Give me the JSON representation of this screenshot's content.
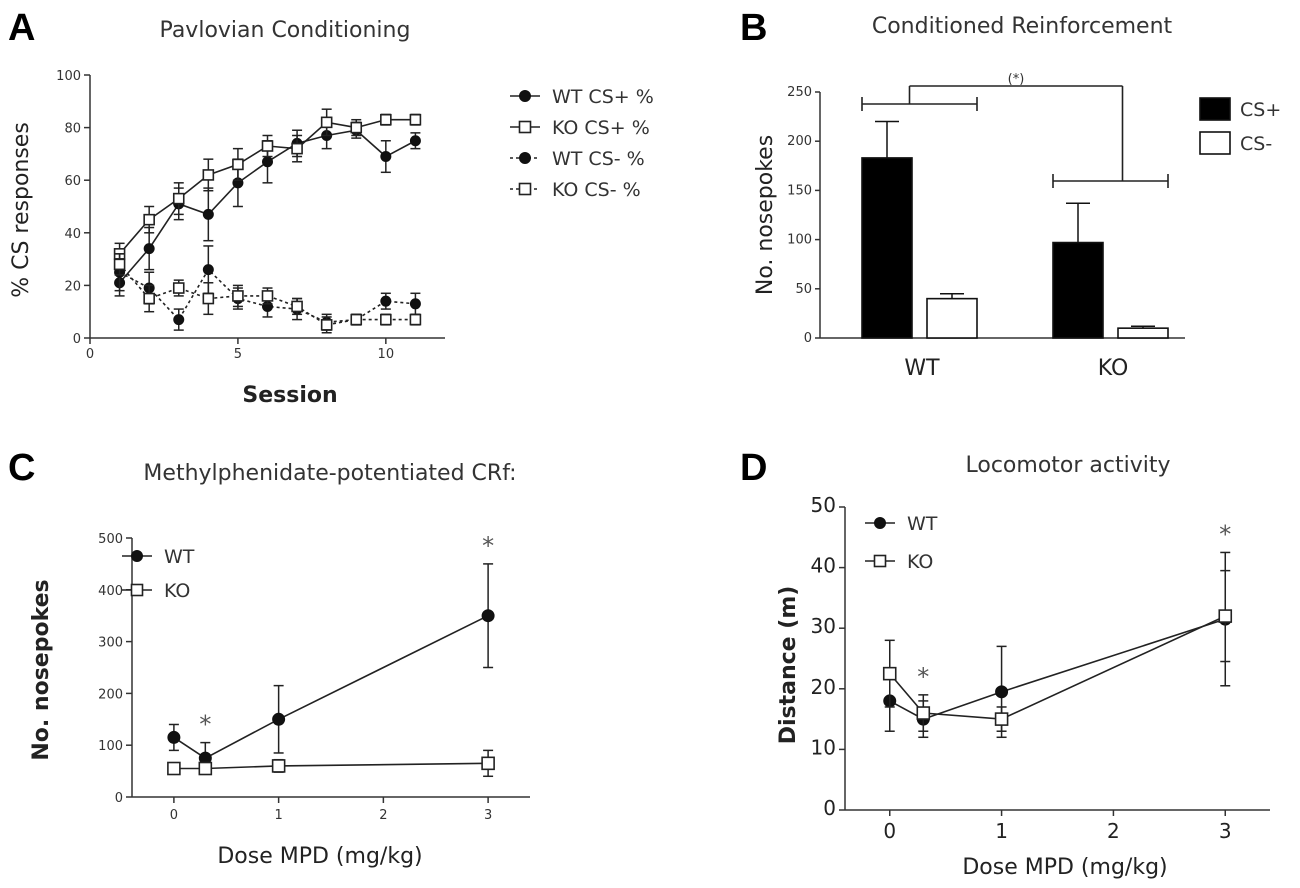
{
  "chart_data": [
    {
      "panel": "A",
      "type": "line",
      "title": "Pavlovian Conditioning",
      "xlabel": "Session",
      "ylabel": "% CS responses",
      "xlim": [
        0,
        12
      ],
      "ylim": [
        0,
        100
      ],
      "xticks": [
        0,
        5,
        10
      ],
      "yticks": [
        0,
        20,
        40,
        60,
        80,
        100
      ],
      "x": [
        1,
        2,
        3,
        4,
        5,
        6,
        7,
        8,
        9,
        10,
        11
      ],
      "series": [
        {
          "name": "WT CS+ %",
          "marker": "filled-circle",
          "dashed": false,
          "values": [
            21,
            34,
            51,
            47,
            59,
            67,
            74,
            77,
            79,
            69,
            75
          ],
          "errors": [
            5,
            8,
            6,
            10,
            9,
            8,
            5,
            5,
            3,
            6,
            3
          ]
        },
        {
          "name": "KO CS+ %",
          "marker": "open-square",
          "dashed": false,
          "values": [
            32,
            45,
            53,
            62,
            66,
            73,
            72,
            82,
            80,
            83,
            83
          ],
          "errors": [
            4,
            5,
            6,
            6,
            6,
            4,
            5,
            5,
            3,
            2,
            2
          ]
        },
        {
          "name": "WT CS- %",
          "marker": "filled-circle",
          "dashed": true,
          "values": [
            25,
            19,
            7,
            26,
            15,
            12,
            11,
            6,
            7,
            14,
            13
          ],
          "errors": [
            7,
            6,
            4,
            9,
            4,
            4,
            4,
            3,
            2,
            3,
            4
          ]
        },
        {
          "name": "KO CS- %",
          "marker": "open-square",
          "dashed": true,
          "values": [
            28,
            15,
            19,
            15,
            16,
            16,
            12,
            5,
            7,
            7,
            7
          ],
          "errors": [
            4,
            5,
            3,
            6,
            4,
            3,
            3,
            3,
            2,
            2,
            2
          ]
        }
      ]
    },
    {
      "panel": "B",
      "type": "bar",
      "title": "Conditioned Reinforcement",
      "ylabel": "No. nosepokes",
      "categories": [
        "WT",
        "KO"
      ],
      "ylim": [
        0,
        250
      ],
      "yticks": [
        0,
        50,
        100,
        150,
        200,
        250
      ],
      "series": [
        {
          "name": "CS+",
          "color": "#000000",
          "values": [
            183,
            97
          ],
          "errors": [
            37,
            40
          ]
        },
        {
          "name": "CS-",
          "color": "#ffffff",
          "values": [
            40,
            10
          ],
          "errors": [
            5,
            2
          ]
        }
      ],
      "annotation": "(*)"
    },
    {
      "panel": "C",
      "type": "line",
      "title": "Methylphenidate-potentiated CRf:",
      "xlabel": "Dose MPD (mg/kg)",
      "ylabel": "No. nosepokes",
      "xlim": [
        -0.4,
        3.4
      ],
      "ylim": [
        0,
        500
      ],
      "xticks": [
        0,
        1,
        2,
        3
      ],
      "yticks": [
        0,
        100,
        200,
        300,
        400,
        500
      ],
      "x": [
        0,
        0.3,
        1,
        3
      ],
      "series": [
        {
          "name": "WT",
          "marker": "filled-circle",
          "values": [
            115,
            75,
            150,
            350
          ],
          "errors": [
            25,
            30,
            65,
            100
          ]
        },
        {
          "name": "KO",
          "marker": "open-square",
          "values": [
            55,
            55,
            60,
            65
          ],
          "errors": [
            10,
            10,
            12,
            25
          ]
        }
      ],
      "significance": [
        {
          "x": 0.3,
          "label": "*"
        },
        {
          "x": 3,
          "label": "*"
        }
      ]
    },
    {
      "panel": "D",
      "type": "line",
      "title": "Locomotor activity",
      "xlabel": "Dose MPD (mg/kg)",
      "ylabel": "Distance (m)",
      "xlim": [
        -0.4,
        3.4
      ],
      "ylim": [
        0,
        50
      ],
      "xticks": [
        0,
        1,
        2,
        3
      ],
      "yticks": [
        0,
        10,
        20,
        30,
        40,
        50
      ],
      "x": [
        0,
        0.3,
        1,
        3
      ],
      "series": [
        {
          "name": "WT",
          "marker": "filled-circle",
          "values": [
            18,
            15,
            19.5,
            31.5
          ],
          "errors": [
            5,
            3,
            7.5,
            11
          ]
        },
        {
          "name": "KO",
          "marker": "open-square",
          "values": [
            22.5,
            16,
            15,
            32
          ],
          "errors": [
            5.5,
            3,
            2,
            7.5
          ]
        }
      ],
      "significance": [
        {
          "x": 0.3,
          "label": "*"
        },
        {
          "x": 3,
          "label": "*"
        }
      ]
    }
  ],
  "panel_letters": [
    "A",
    "B",
    "C",
    "D"
  ]
}
